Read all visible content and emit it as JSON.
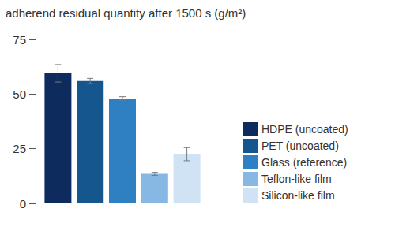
{
  "chart_data": {
    "type": "bar",
    "title": "adherend residual quantity after 1500 s (g/m²)",
    "categories": [
      null
    ],
    "series": [
      {
        "name": "HDPE (uncoated)",
        "color": "#0d2b5c",
        "values": [
          59.5
        ],
        "errors": [
          4
        ]
      },
      {
        "name": "PET (uncoated)",
        "color": "#15568f",
        "values": [
          56
        ],
        "errors": [
          1.2
        ]
      },
      {
        "name": "Glass (reference)",
        "color": "#2e80c2",
        "values": [
          48
        ],
        "errors": [
          0.8
        ]
      },
      {
        "name": "Teflon-like film",
        "color": "#87b8e3",
        "values": [
          13.5
        ],
        "errors": [
          0.7
        ]
      },
      {
        "name": "Silicon-like film",
        "color": "#cfe3f5",
        "values": [
          22.5
        ],
        "errors": [
          3
        ]
      }
    ],
    "ylim": [
      0,
      75
    ],
    "yticks": [
      0,
      25,
      50,
      75
    ],
    "grid": false,
    "legend": "right",
    "tick_labels": "y"
  }
}
